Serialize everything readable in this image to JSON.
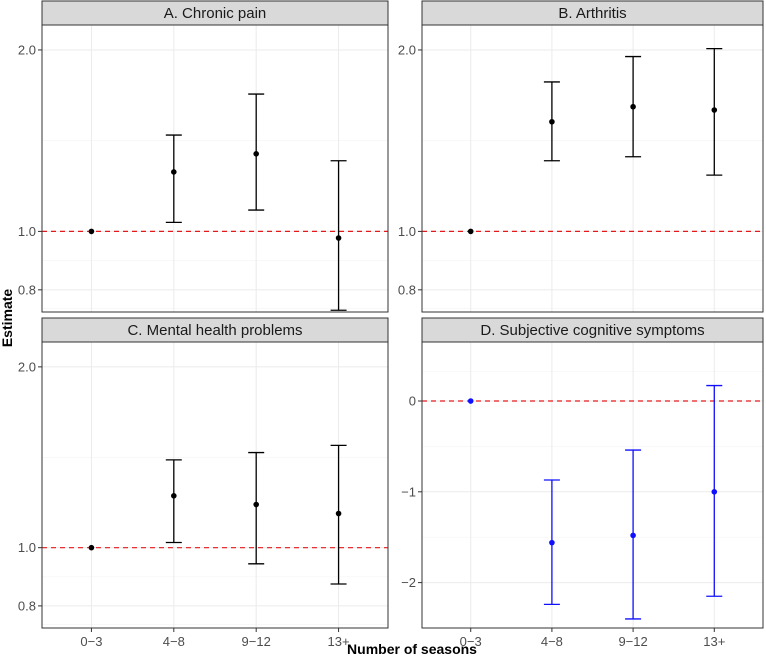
{
  "chart_data": [
    {
      "panel": "A",
      "type": "errorbar",
      "title": "A. Chronic pain",
      "scale": "log",
      "ylim": [
        0.735,
        2.2
      ],
      "yticks": [
        {
          "value": 0.8,
          "label": "0.8"
        },
        {
          "value": 1.0,
          "label": "1.0"
        },
        {
          "value": 2.0,
          "label": "2.0"
        }
      ],
      "reference": 1.0,
      "color": "#000000",
      "categories": [
        "0−3",
        "4−8",
        "9−12",
        "13+"
      ],
      "estimates": [
        1.0,
        1.255,
        1.345,
        0.975
      ],
      "lower": [
        1.0,
        1.035,
        1.085,
        0.74
      ],
      "upper": [
        1.0,
        1.445,
        1.69,
        1.31
      ]
    },
    {
      "panel": "B",
      "type": "errorbar",
      "title": "B. Arthritis",
      "scale": "log",
      "ylim": [
        0.735,
        2.2
      ],
      "yticks": [
        {
          "value": 0.8,
          "label": "0.8"
        },
        {
          "value": 1.0,
          "label": "1.0"
        },
        {
          "value": 2.0,
          "label": "2.0"
        }
      ],
      "reference": 1.0,
      "color": "#000000",
      "categories": [
        "0−3",
        "4−8",
        "9−12",
        "13+"
      ],
      "estimates": [
        1.0,
        1.52,
        1.61,
        1.59
      ],
      "lower": [
        1.0,
        1.31,
        1.33,
        1.24
      ],
      "upper": [
        1.0,
        1.77,
        1.95,
        2.01
      ]
    },
    {
      "panel": "C",
      "type": "errorbar",
      "title": "C. Mental health problems",
      "scale": "log",
      "ylim": [
        0.735,
        2.2
      ],
      "yticks": [
        {
          "value": 0.8,
          "label": "0.8"
        },
        {
          "value": 1.0,
          "label": "1.0"
        },
        {
          "value": 2.0,
          "label": "2.0"
        }
      ],
      "reference": 1.0,
      "color": "#000000",
      "categories": [
        "0−3",
        "4−8",
        "9−12",
        "13+"
      ],
      "estimates": [
        1.0,
        1.22,
        1.18,
        1.14
      ],
      "lower": [
        1.0,
        1.02,
        0.94,
        0.87
      ],
      "upper": [
        1.0,
        1.4,
        1.44,
        1.48
      ]
    },
    {
      "panel": "D",
      "type": "errorbar",
      "title": "D. Subjective cognitive symptoms",
      "scale": "linear",
      "ylim": [
        -2.5,
        0.65
      ],
      "yticks": [
        {
          "value": -2,
          "label": "−2"
        },
        {
          "value": -1,
          "label": "−1"
        },
        {
          "value": 0,
          "label": "0"
        }
      ],
      "reference": 0,
      "color": "#1010ff",
      "categories": [
        "0−3",
        "4−8",
        "9−12",
        "13+"
      ],
      "estimates": [
        0.0,
        -1.56,
        -1.48,
        -1.0
      ],
      "lower": [
        0.0,
        -2.24,
        -2.4,
        -2.15
      ],
      "upper": [
        0.0,
        -0.87,
        -0.54,
        0.17
      ]
    }
  ],
  "axes": {
    "xlabel": "Number of seasons",
    "ylabel": "Estimate",
    "reference_color": "#e31a1c"
  }
}
